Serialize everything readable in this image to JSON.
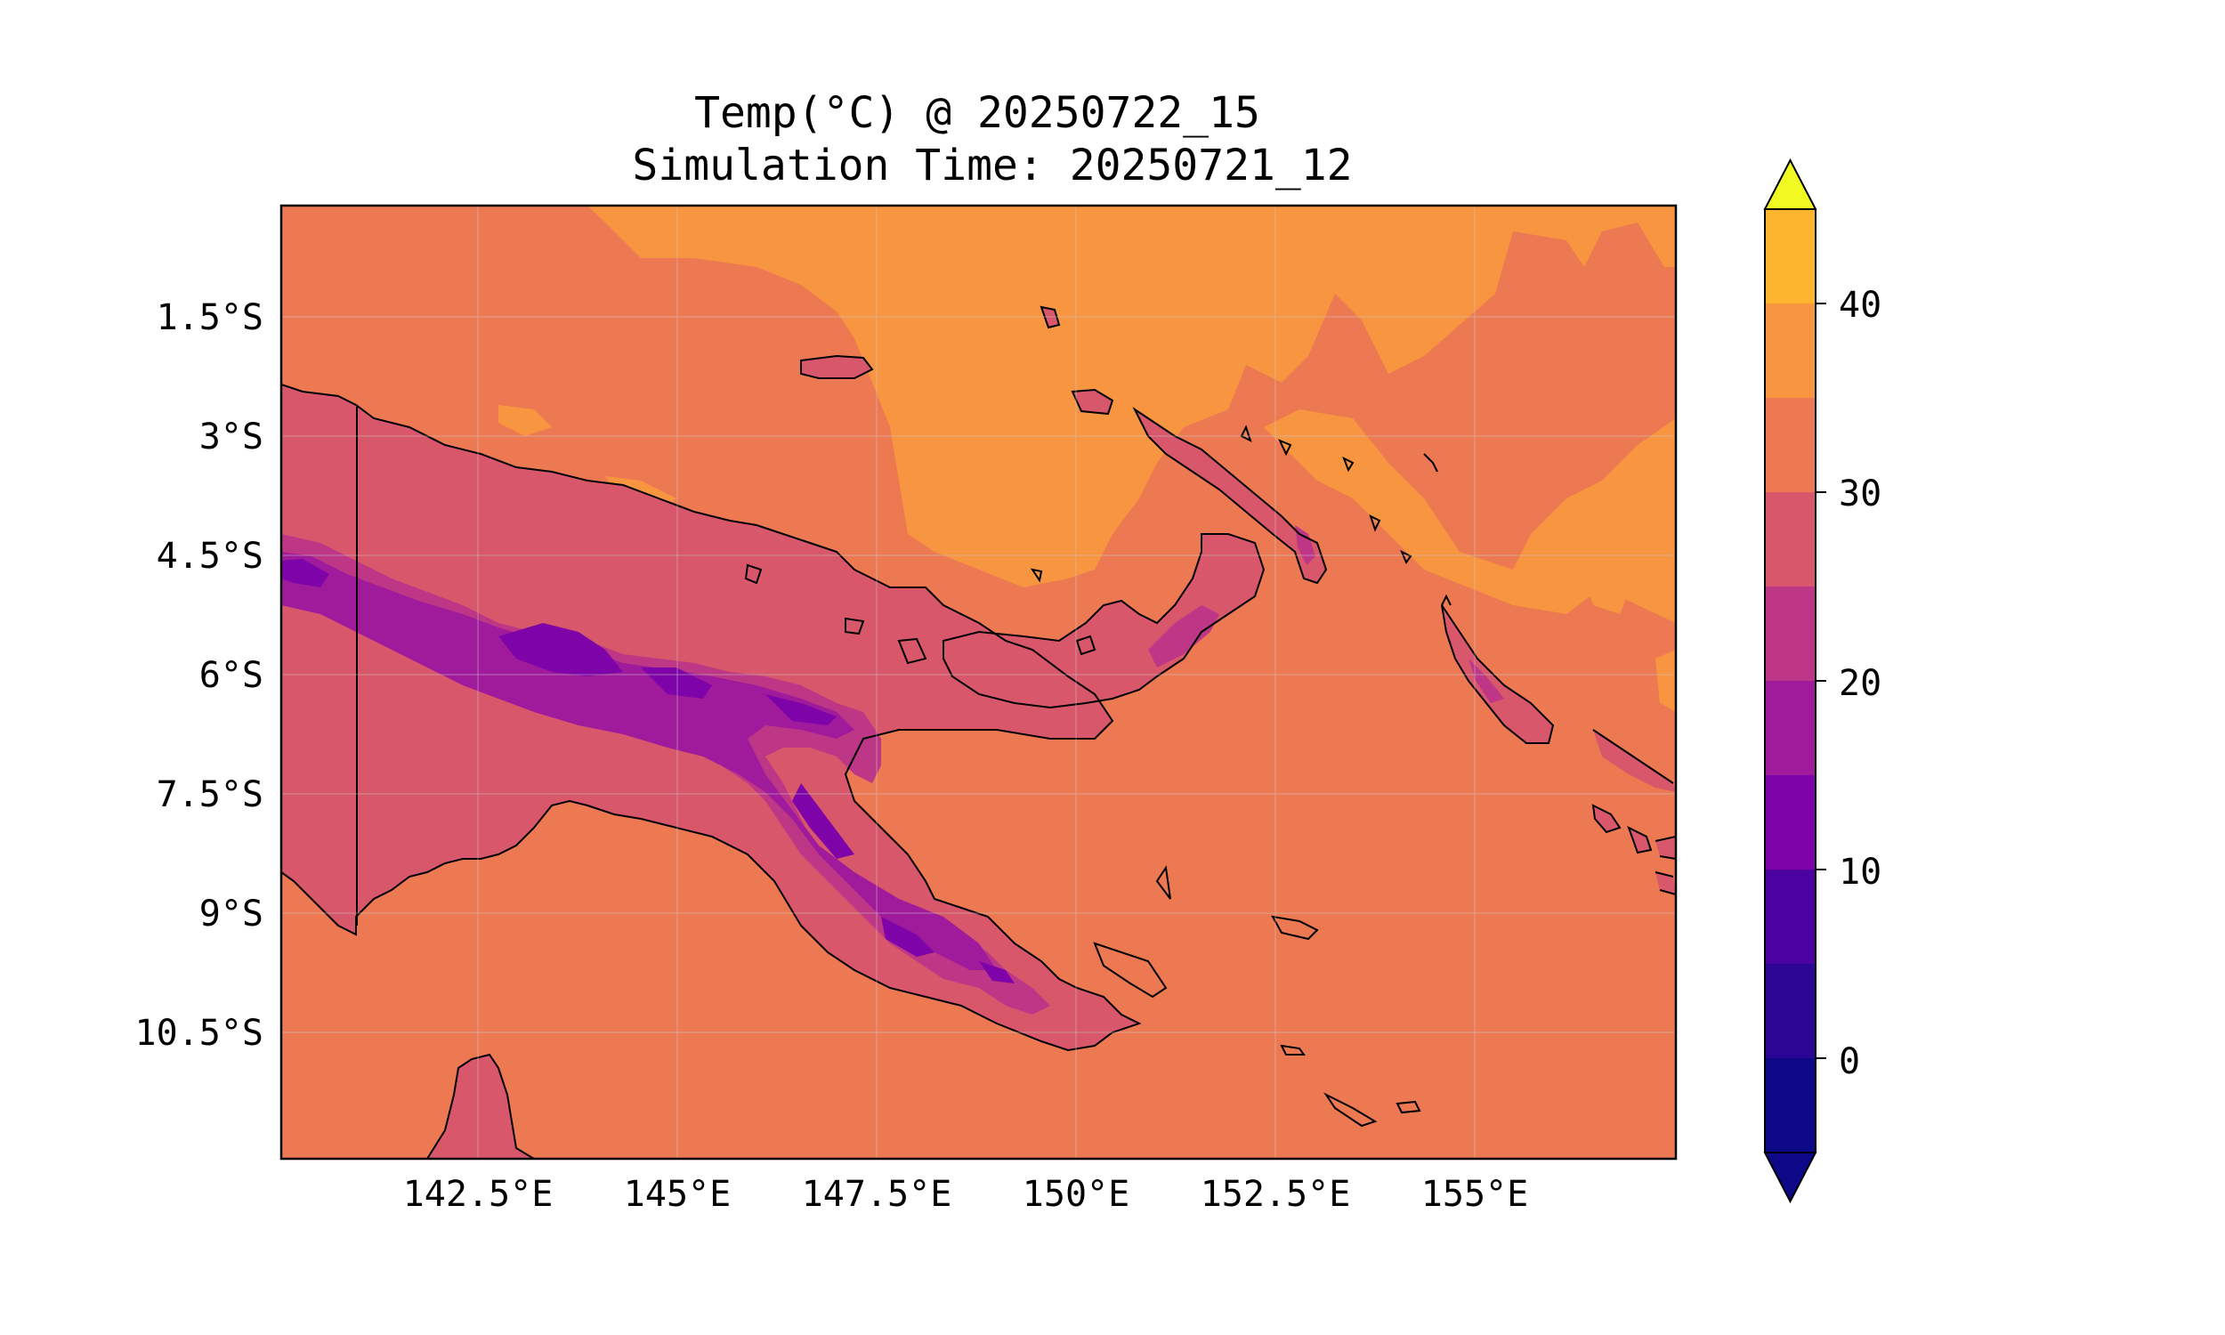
{
  "title": {
    "line1": "Temp(°C) @ 20250722_15",
    "line2": "Simulation Time: 20250721_12"
  },
  "map": {
    "lat_ticks": [
      "1.5°S",
      "3°S",
      "4.5°S",
      "6°S",
      "7.5°S",
      "9°S",
      "10.5°S"
    ],
    "lon_ticks": [
      "142.5°E",
      "145°E",
      "147.5°E",
      "150°E",
      "152.5°E",
      "155°E"
    ]
  },
  "colorbar": {
    "ticks": [
      "0",
      "10",
      "20",
      "30",
      "40"
    ],
    "levels": [
      -5,
      0,
      5,
      10,
      15,
      20,
      25,
      30,
      35,
      40,
      45
    ],
    "colors": [
      "#0d0887",
      "#2b0594",
      "#4c02a1",
      "#7e03a8",
      "#a01a9c",
      "#bd3786",
      "#d8576b",
      "#ed7953",
      "#f89540",
      "#fdb42f",
      "#f0f921"
    ],
    "extend": "both"
  },
  "palette": {
    "ocean_warm": "#ed7953",
    "hot_sea": "#f89540",
    "lowland": "#d8576b",
    "upland": "#bd3786",
    "highland": "#a01a9c",
    "peaks": "#7e03a8",
    "coast": "#000000"
  }
}
